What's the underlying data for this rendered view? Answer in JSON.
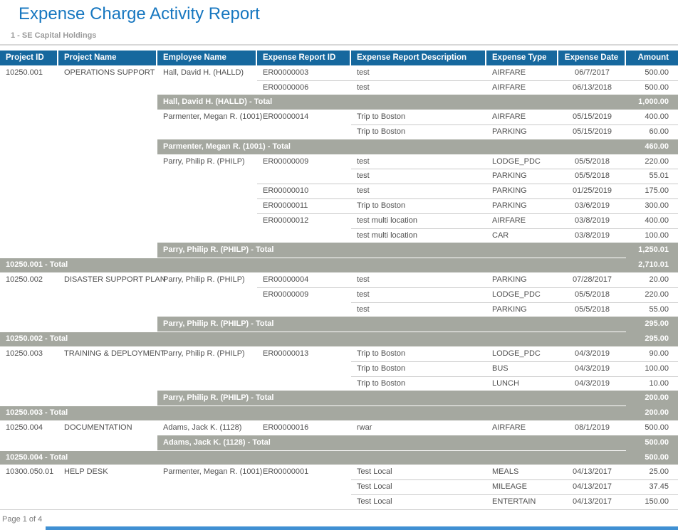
{
  "header": {
    "title": "Expense Charge Activity Report",
    "subtitle": "1 - SE Capital Holdings"
  },
  "footer": {
    "page_label": "Page 1 of 4"
  },
  "colors": {
    "accent": "#1777c0",
    "header_bg": "#16689e",
    "total_bar": "#a5a8a0",
    "scrollbar": "#4090d3"
  },
  "table": {
    "columns": [
      {
        "key": "project_id",
        "label": "Project ID",
        "width": 82,
        "align": "left"
      },
      {
        "key": "project_name",
        "label": "Project Name",
        "width": 139,
        "align": "left"
      },
      {
        "key": "employee_name",
        "label": "Employee Name",
        "width": 140,
        "align": "left"
      },
      {
        "key": "expense_report_id",
        "label": "Expense Report ID",
        "width": 132,
        "align": "left"
      },
      {
        "key": "description",
        "label": "Expense Report Description",
        "width": 190,
        "align": "left"
      },
      {
        "key": "expense_type",
        "label": "Expense Type",
        "width": 101,
        "align": "left"
      },
      {
        "key": "expense_date",
        "label": "Expense Date",
        "width": 95,
        "align": "center"
      },
      {
        "key": "amount",
        "label": "Amount",
        "width": 73,
        "align": "right"
      }
    ],
    "rows": [
      {
        "type": "detail",
        "sep": "none",
        "project_id": "10250.001",
        "project_name": "OPERATIONS SUPPORT",
        "employee_name": "Hall, David H. (HALLD)",
        "expense_report_id": "ER00000003",
        "description": "test",
        "expense_type": "AIRFARE",
        "expense_date": "06/7/2017",
        "amount": "500.00"
      },
      {
        "type": "detail",
        "sep": "id",
        "project_id": "",
        "project_name": "",
        "employee_name": "",
        "expense_report_id": "ER00000006",
        "description": "test",
        "expense_type": "AIRFARE",
        "expense_date": "06/13/2018",
        "amount": "500.00"
      },
      {
        "type": "employee_total",
        "label": "Hall, David H. (HALLD) - Total",
        "amount": "1,000.00"
      },
      {
        "type": "detail",
        "sep": "none",
        "project_id": "",
        "project_name": "",
        "employee_name": "Parmenter, Megan R. (1001)",
        "expense_report_id": "ER00000014",
        "description": "Trip to Boston",
        "expense_type": "AIRFARE",
        "expense_date": "05/15/2019",
        "amount": "400.00"
      },
      {
        "type": "detail",
        "sep": "desc",
        "project_id": "",
        "project_name": "",
        "employee_name": "",
        "expense_report_id": "",
        "description": "Trip to Boston",
        "expense_type": "PARKING",
        "expense_date": "05/15/2019",
        "amount": "60.00"
      },
      {
        "type": "employee_total",
        "label": "Parmenter, Megan R. (1001) - Total",
        "amount": "460.00"
      },
      {
        "type": "detail",
        "sep": "none",
        "project_id": "",
        "project_name": "",
        "employee_name": "Parry, Philip R. (PHILP)",
        "expense_report_id": "ER00000009",
        "description": "test",
        "expense_type": "LODGE_PDC",
        "expense_date": "05/5/2018",
        "amount": "220.00"
      },
      {
        "type": "detail",
        "sep": "desc",
        "project_id": "",
        "project_name": "",
        "employee_name": "",
        "expense_report_id": "",
        "description": "test",
        "expense_type": "PARKING",
        "expense_date": "05/5/2018",
        "amount": "55.01"
      },
      {
        "type": "detail",
        "sep": "id",
        "project_id": "",
        "project_name": "",
        "employee_name": "",
        "expense_report_id": "ER00000010",
        "description": "test",
        "expense_type": "PARKING",
        "expense_date": "01/25/2019",
        "amount": "175.00"
      },
      {
        "type": "detail",
        "sep": "id",
        "project_id": "",
        "project_name": "",
        "employee_name": "",
        "expense_report_id": "ER00000011",
        "description": "Trip to Boston",
        "expense_type": "PARKING",
        "expense_date": "03/6/2019",
        "amount": "300.00"
      },
      {
        "type": "detail",
        "sep": "id",
        "project_id": "",
        "project_name": "",
        "employee_name": "",
        "expense_report_id": "ER00000012",
        "description": "test multi location",
        "expense_type": "AIRFARE",
        "expense_date": "03/8/2019",
        "amount": "400.00"
      },
      {
        "type": "detail",
        "sep": "desc",
        "project_id": "",
        "project_name": "",
        "employee_name": "",
        "expense_report_id": "",
        "description": "test multi location",
        "expense_type": "CAR",
        "expense_date": "03/8/2019",
        "amount": "100.00"
      },
      {
        "type": "employee_total",
        "label": "Parry, Philip R. (PHILP) - Total",
        "amount": "1,250.01"
      },
      {
        "type": "project_total",
        "label": "10250.001 - Total",
        "amount": "2,710.01"
      },
      {
        "type": "detail",
        "sep": "none",
        "project_id": "10250.002",
        "project_name": "DISASTER SUPPORT PLAN",
        "employee_name": "Parry, Philip R. (PHILP)",
        "expense_report_id": "ER00000004",
        "description": "test",
        "expense_type": "PARKING",
        "expense_date": "07/28/2017",
        "amount": "20.00"
      },
      {
        "type": "detail",
        "sep": "id",
        "project_id": "",
        "project_name": "",
        "employee_name": "",
        "expense_report_id": "ER00000009",
        "description": "test",
        "expense_type": "LODGE_PDC",
        "expense_date": "05/5/2018",
        "amount": "220.00"
      },
      {
        "type": "detail",
        "sep": "desc",
        "project_id": "",
        "project_name": "",
        "employee_name": "",
        "expense_report_id": "",
        "description": "test",
        "expense_type": "PARKING",
        "expense_date": "05/5/2018",
        "amount": "55.00"
      },
      {
        "type": "employee_total",
        "label": "Parry, Philip R. (PHILP) - Total",
        "amount": "295.00"
      },
      {
        "type": "project_total",
        "label": "10250.002 - Total",
        "amount": "295.00"
      },
      {
        "type": "detail",
        "sep": "none",
        "project_id": "10250.003",
        "project_name": "TRAINING & DEPLOYMENT",
        "employee_name": "Parry, Philip R. (PHILP)",
        "expense_report_id": "ER00000013",
        "description": "Trip to Boston",
        "expense_type": "LODGE_PDC",
        "expense_date": "04/3/2019",
        "amount": "90.00"
      },
      {
        "type": "detail",
        "sep": "desc",
        "project_id": "",
        "project_name": "",
        "employee_name": "",
        "expense_report_id": "",
        "description": "Trip to Boston",
        "expense_type": "BUS",
        "expense_date": "04/3/2019",
        "amount": "100.00"
      },
      {
        "type": "detail",
        "sep": "desc",
        "project_id": "",
        "project_name": "",
        "employee_name": "",
        "expense_report_id": "",
        "description": "Trip to Boston",
        "expense_type": "LUNCH",
        "expense_date": "04/3/2019",
        "amount": "10.00"
      },
      {
        "type": "employee_total",
        "label": "Parry, Philip R. (PHILP) - Total",
        "amount": "200.00"
      },
      {
        "type": "project_total",
        "label": "10250.003 - Total",
        "amount": "200.00"
      },
      {
        "type": "detail",
        "sep": "none",
        "project_id": "10250.004",
        "project_name": "DOCUMENTATION",
        "employee_name": "Adams, Jack K. (1128)",
        "expense_report_id": "ER00000016",
        "description": "rwar",
        "expense_type": "AIRFARE",
        "expense_date": "08/1/2019",
        "amount": "500.00"
      },
      {
        "type": "employee_total",
        "label": "Adams, Jack K. (1128) - Total",
        "amount": "500.00"
      },
      {
        "type": "project_total",
        "label": "10250.004 - Total",
        "amount": "500.00"
      },
      {
        "type": "detail",
        "sep": "none",
        "project_id": "10300.050.01",
        "project_name": "HELP DESK",
        "employee_name": "Parmenter, Megan R. (1001)",
        "expense_report_id": "ER00000001",
        "description": "Test Local",
        "expense_type": "MEALS",
        "expense_date": "04/13/2017",
        "amount": "25.00"
      },
      {
        "type": "detail",
        "sep": "desc",
        "project_id": "",
        "project_name": "",
        "employee_name": "",
        "expense_report_id": "",
        "description": "Test Local",
        "expense_type": "MILEAGE",
        "expense_date": "04/13/2017",
        "amount": "37.45"
      },
      {
        "type": "detail",
        "sep": "desc",
        "project_id": "",
        "project_name": "",
        "employee_name": "",
        "expense_report_id": "",
        "description": "Test Local",
        "expense_type": "ENTERTAIN",
        "expense_date": "04/13/2017",
        "amount": "150.00"
      }
    ]
  }
}
